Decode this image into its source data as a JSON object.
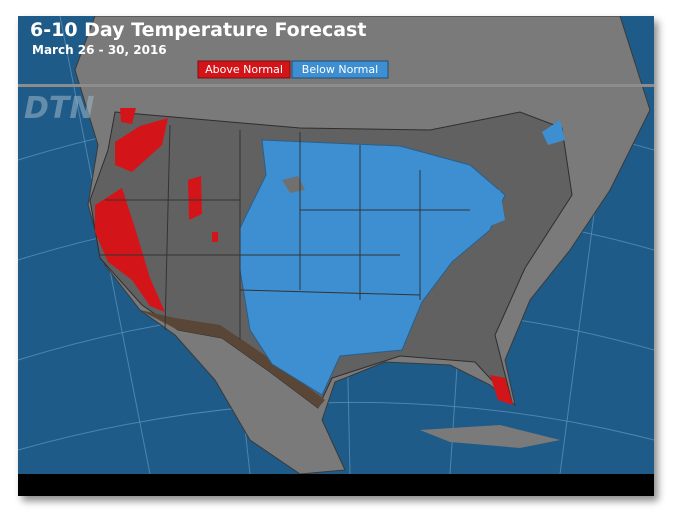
{
  "header": {
    "title": "6-10 Day Temperature Forecast",
    "subtitle": "March 26 - 30, 2016"
  },
  "legend": [
    {
      "label": "Above Normal"
    },
    {
      "label": "Below Normal"
    }
  ],
  "watermark": "DTN"
}
